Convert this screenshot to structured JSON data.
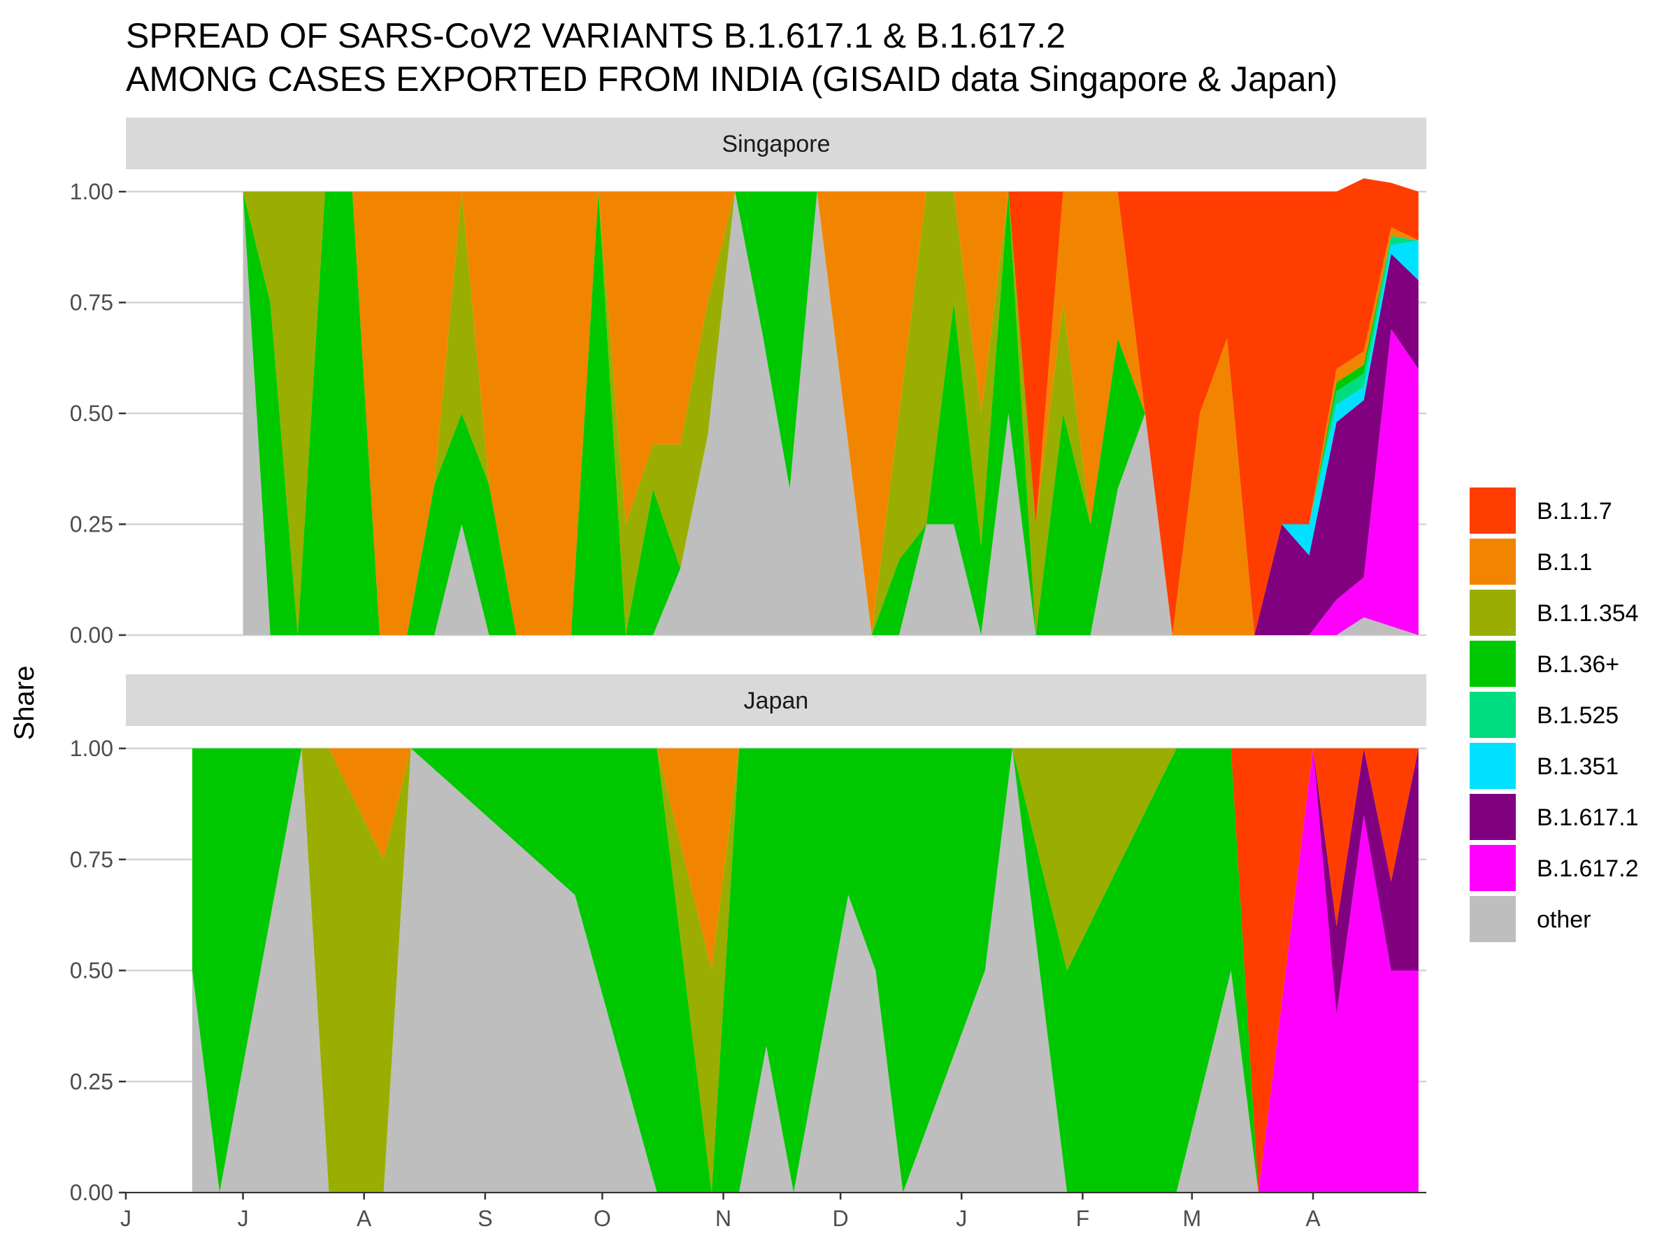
{
  "chart_data": {
    "type": "area",
    "title": [
      "SPREAD OF SARS-CoV2 VARIANTS B.1.617.1 & B.1.617.2",
      "AMONG CASES EXPORTED FROM INDIA (GISAID data Singapore & Japan)"
    ],
    "ylabel": "Share",
    "xlabel": "",
    "ylim": [
      0,
      1
    ],
    "yticks": [
      "0.00",
      "0.25",
      "0.50",
      "0.75",
      "1.00"
    ],
    "xticks": [
      "J",
      "J",
      "A",
      "S",
      "O",
      "N",
      "D",
      "J",
      "F",
      "M",
      "A"
    ],
    "x_tick_dates": [
      "2020-06-01",
      "2020-07-01",
      "2020-08-01",
      "2020-09-01",
      "2020-10-01",
      "2020-11-01",
      "2020-12-01",
      "2021-01-01",
      "2021-02-01",
      "2021-03-01",
      "2021-04-01"
    ],
    "x_range": [
      "2020-06-01",
      "2021-04-30"
    ],
    "grid": true,
    "legend_position": "right",
    "series_order": [
      "other",
      "B.1.617.2",
      "B.1.617.1",
      "B.1.351",
      "B.1.525",
      "B.1.36+",
      "B.1.1.354",
      "B.1.1",
      "B.1.1.7"
    ],
    "legend": [
      {
        "name": "B.1.1.7",
        "color": "#FF3D00"
      },
      {
        "name": "B.1.1",
        "color": "#F28500"
      },
      {
        "name": "B.1.1.354",
        "color": "#99AE00"
      },
      {
        "name": "B.1.36+",
        "color": "#00C800"
      },
      {
        "name": "B.1.525",
        "color": "#00DC80"
      },
      {
        "name": "B.1.351",
        "color": "#00E0FF"
      },
      {
        "name": "B.1.617.1",
        "color": "#800080"
      },
      {
        "name": "B.1.617.2",
        "color": "#FF00FF"
      },
      {
        "name": "other",
        "color": "#BEBEBE"
      }
    ],
    "panels": [
      {
        "name": "Singapore",
        "x": [
          "2020-07-01",
          "2020-07-08",
          "2020-07-15",
          "2020-07-22",
          "2020-07-29",
          "2020-08-05",
          "2020-08-12",
          "2020-08-19",
          "2020-08-26",
          "2020-09-02",
          "2020-09-09",
          "2020-09-16",
          "2020-09-23",
          "2020-09-30",
          "2020-10-07",
          "2020-10-14",
          "2020-10-21",
          "2020-10-28",
          "2020-11-04",
          "2020-11-11",
          "2020-11-18",
          "2020-11-25",
          "2020-12-02",
          "2020-12-09",
          "2020-12-16",
          "2020-12-23",
          "2020-12-30",
          "2021-01-06",
          "2021-01-13",
          "2021-01-20",
          "2021-01-27",
          "2021-02-03",
          "2021-02-10",
          "2021-02-17",
          "2021-02-24",
          "2021-03-03",
          "2021-03-10",
          "2021-03-17",
          "2021-03-24",
          "2021-03-31",
          "2021-04-07",
          "2021-04-14",
          "2021-04-21",
          "2021-04-28"
        ],
        "series": [
          {
            "name": "other",
            "values": [
              1,
              0,
              0,
              0,
              0,
              0,
              0,
              0,
              0.25,
              0,
              0,
              0,
              0,
              0,
              0,
              0,
              0.15,
              0.45,
              1,
              0.68,
              0.33,
              1,
              0.5,
              0,
              0,
              0.25,
              0.25,
              0,
              0.5,
              0,
              0,
              0,
              0.33,
              0.5,
              0,
              0,
              0,
              0,
              0,
              0,
              0,
              0.04,
              0.02,
              0
            ]
          },
          {
            "name": "B.1.617.2",
            "values": [
              0,
              0,
              0,
              0,
              0,
              0,
              0,
              0,
              0,
              0,
              0,
              0,
              0,
              0,
              0,
              0,
              0,
              0,
              0,
              0,
              0,
              0,
              0,
              0,
              0,
              0,
              0,
              0,
              0,
              0,
              0,
              0,
              0,
              0,
              0,
              0,
              0,
              0,
              0,
              0,
              0.08,
              0.09,
              0.67,
              0.6
            ]
          },
          {
            "name": "B.1.617.1",
            "values": [
              0,
              0,
              0,
              0,
              0,
              0,
              0,
              0,
              0,
              0,
              0,
              0,
              0,
              0,
              0,
              0,
              0,
              0,
              0,
              0,
              0,
              0,
              0,
              0,
              0,
              0,
              0,
              0,
              0,
              0,
              0,
              0,
              0,
              0,
              0,
              0,
              0,
              0,
              0.25,
              0.18,
              0.4,
              0.4,
              0.17,
              0.2
            ]
          },
          {
            "name": "B.1.351",
            "values": [
              0,
              0,
              0,
              0,
              0,
              0,
              0,
              0,
              0,
              0,
              0,
              0,
              0,
              0,
              0,
              0,
              0,
              0,
              0,
              0,
              0,
              0,
              0,
              0,
              0,
              0,
              0,
              0,
              0,
              0,
              0,
              0,
              0,
              0,
              0,
              0,
              0,
              0,
              0,
              0.07,
              0.04,
              0.03,
              0.02,
              0.09
            ]
          },
          {
            "name": "B.1.525",
            "values": [
              0,
              0,
              0,
              0,
              0,
              0,
              0,
              0,
              0,
              0,
              0,
              0,
              0,
              0,
              0,
              0,
              0,
              0,
              0,
              0,
              0,
              0,
              0,
              0,
              0,
              0,
              0,
              0,
              0,
              0,
              0,
              0,
              0,
              0,
              0,
              0,
              0,
              0,
              0,
              0,
              0.03,
              0.03,
              0.02,
              0
            ]
          },
          {
            "name": "B.1.36+",
            "values": [
              0,
              0.75,
              0,
              1,
              1,
              0,
              0,
              0.34,
              0.25,
              0.34,
              0,
              0,
              0,
              1,
              0,
              0.33,
              0,
              0,
              0,
              0.32,
              0.67,
              0,
              0,
              0,
              0.17,
              0,
              0.5,
              0.2,
              0.5,
              0,
              0.5,
              0.25,
              0.34,
              0,
              0,
              0,
              0,
              0,
              0,
              0,
              0.02,
              0.02,
              0,
              0
            ]
          },
          {
            "name": "B.1.1.354",
            "values": [
              0,
              0.25,
              1,
              0,
              0,
              0,
              0,
              0,
              0.5,
              0,
              0,
              0,
              0,
              0,
              0.25,
              0.1,
              0.28,
              0.3,
              0,
              0,
              0,
              0,
              0,
              0,
              0.33,
              0.75,
              0.25,
              0.3,
              0,
              0.25,
              0.25,
              0,
              0,
              0,
              0,
              0,
              0,
              0,
              0,
              0,
              0,
              0,
              0,
              0
            ]
          },
          {
            "name": "B.1.1",
            "values": [
              0,
              0,
              0,
              0,
              0,
              1,
              1,
              0.66,
              0,
              0.66,
              1,
              1,
              1,
              0,
              0.75,
              0.57,
              0.57,
              0.25,
              0,
              0,
              0,
              0,
              0.5,
              1,
              0.5,
              0,
              0,
              0.5,
              0,
              0,
              0.25,
              0.75,
              0.33,
              0,
              0,
              0.5,
              0.67,
              0,
              0,
              0,
              0.03,
              0.03,
              0.02,
              0
            ]
          },
          {
            "name": "B.1.1.7",
            "values": [
              0,
              0,
              0,
              0,
              0,
              0,
              0,
              0,
              0,
              0,
              0,
              0,
              0,
              0,
              0,
              0,
              0,
              0,
              0,
              0,
              0,
              0,
              0,
              0,
              0,
              0,
              0,
              0,
              0,
              0.75,
              0,
              0,
              0,
              0.5,
              1,
              0.5,
              0.33,
              1,
              0.75,
              0.75,
              0.4,
              0.39,
              0.1,
              0.11
            ]
          }
        ]
      },
      {
        "name": "Japan",
        "x": [
          "2020-06-18",
          "2020-06-25",
          "2020-07-16",
          "2020-07-23",
          "2020-08-06",
          "2020-08-13",
          "2020-09-24",
          "2020-10-15",
          "2020-10-29",
          "2020-11-05",
          "2020-11-12",
          "2020-11-19",
          "2020-12-03",
          "2020-12-10",
          "2020-12-17",
          "2021-01-07",
          "2021-01-14",
          "2021-01-28",
          "2021-02-25",
          "2021-03-11",
          "2021-03-18",
          "2021-04-01",
          "2021-04-07",
          "2021-04-14",
          "2021-04-21",
          "2021-04-28"
        ],
        "series": [
          {
            "name": "other",
            "values": [
              0.5,
              0,
              1,
              0,
              0,
              1,
              0.67,
              0,
              0,
              0,
              0.33,
              0,
              0.67,
              0.5,
              0,
              0.5,
              1,
              0,
              0,
              0.5,
              0,
              0,
              0,
              0,
              0,
              0
            ]
          },
          {
            "name": "B.1.617.2",
            "values": [
              0,
              0,
              0,
              0,
              0,
              0,
              0,
              0,
              0,
              0,
              0,
              0,
              0,
              0,
              0,
              0,
              0,
              0,
              0,
              0,
              0,
              1,
              0.4,
              0.85,
              0.5,
              0.5
            ]
          },
          {
            "name": "B.1.617.1",
            "values": [
              0,
              0,
              0,
              0,
              0,
              0,
              0,
              0,
              0,
              0,
              0,
              0,
              0,
              0,
              0,
              0,
              0,
              0,
              0,
              0,
              0,
              0,
              0.2,
              0.15,
              0.2,
              0.5
            ]
          },
          {
            "name": "B.1.351",
            "values": [
              0,
              0,
              0,
              0,
              0,
              0,
              0,
              0,
              0,
              0,
              0,
              0,
              0,
              0,
              0,
              0,
              0,
              0,
              0,
              0,
              0,
              0,
              0,
              0,
              0,
              0
            ]
          },
          {
            "name": "B.1.525",
            "values": [
              0,
              0,
              0,
              0,
              0,
              0,
              0,
              0,
              0,
              0,
              0,
              0,
              0,
              0,
              0,
              0,
              0,
              0,
              0,
              0,
              0,
              0,
              0,
              0,
              0,
              0
            ]
          },
          {
            "name": "B.1.36+",
            "values": [
              0.5,
              1,
              0,
              0,
              0,
              0,
              0.33,
              1,
              0,
              1,
              0.67,
              1,
              0.33,
              0.5,
              1,
              0.5,
              0,
              0.5,
              1,
              0.5,
              0,
              0,
              0,
              0,
              0,
              0
            ]
          },
          {
            "name": "B.1.1.354",
            "values": [
              0,
              0,
              0,
              1,
              0.75,
              0,
              0,
              0,
              0.5,
              0,
              0,
              0,
              0,
              0,
              0,
              0,
              0,
              0.5,
              0,
              0,
              0,
              0,
              0,
              0,
              0,
              0
            ]
          },
          {
            "name": "B.1.1",
            "values": [
              0,
              0,
              0,
              0,
              0.25,
              0,
              0,
              0,
              0.5,
              0,
              0,
              0,
              0,
              0,
              0,
              0,
              0,
              0,
              0,
              0,
              0,
              0,
              0,
              0,
              0,
              0
            ]
          },
          {
            "name": "B.1.1.7",
            "values": [
              0,
              0,
              0,
              0,
              0,
              0,
              0,
              0,
              0,
              0,
              0,
              0,
              0,
              0,
              0,
              0,
              0,
              0,
              0,
              0,
              1,
              0,
              0.4,
              0,
              0.3,
              0
            ]
          }
        ]
      }
    ]
  }
}
